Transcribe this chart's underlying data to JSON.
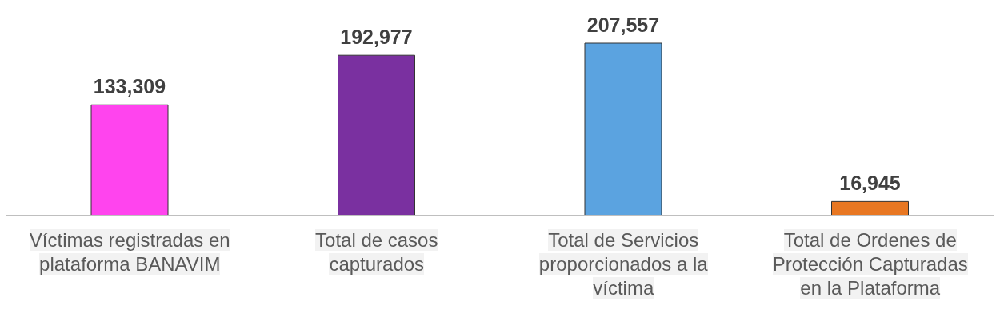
{
  "chart_data": {
    "type": "bar",
    "categories": [
      "Víctimas registradas en plataforma BANAVIM",
      "Total de casos capturados",
      "Total de Servicios proporcionados a la víctima",
      "Total de Ordenes de Protección Capturadas en la Plataforma"
    ],
    "values": [
      133309,
      192977,
      207557,
      16945
    ],
    "colors": [
      "#ff44ee",
      "#7a30a0",
      "#5ba3e0",
      "#e87722"
    ],
    "value_labels": [
      "133,309",
      "192,977",
      "207,557",
      "16,945"
    ],
    "grid": false,
    "legend": false
  }
}
